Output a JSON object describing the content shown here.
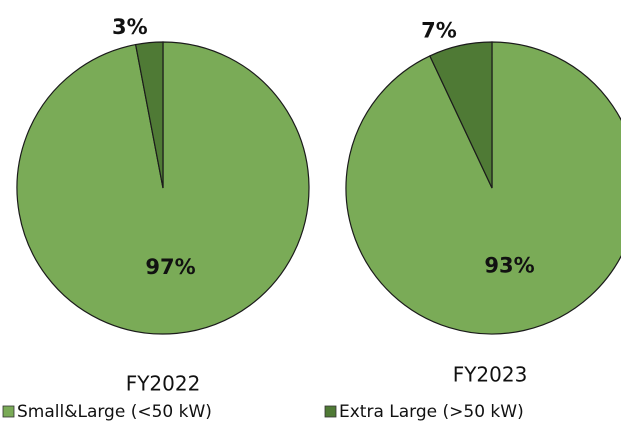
{
  "chart_data": [
    {
      "type": "pie",
      "title": "FY2022",
      "categories": [
        "Small&Large (<50 kW)",
        "Extra Large (>50 kW)"
      ],
      "values": [
        97,
        3
      ],
      "value_labels": [
        "97%",
        "3%"
      ],
      "colors": [
        "#7aab57",
        "#4f7a35"
      ]
    },
    {
      "type": "pie",
      "title": "FY2023",
      "categories": [
        "Small&Large (<50 kW)",
        "Extra Large (>50 kW)"
      ],
      "values": [
        93,
        7
      ],
      "value_labels": [
        "93%",
        "7%"
      ],
      "colors": [
        "#7aab57",
        "#4f7a35"
      ]
    }
  ]
}
